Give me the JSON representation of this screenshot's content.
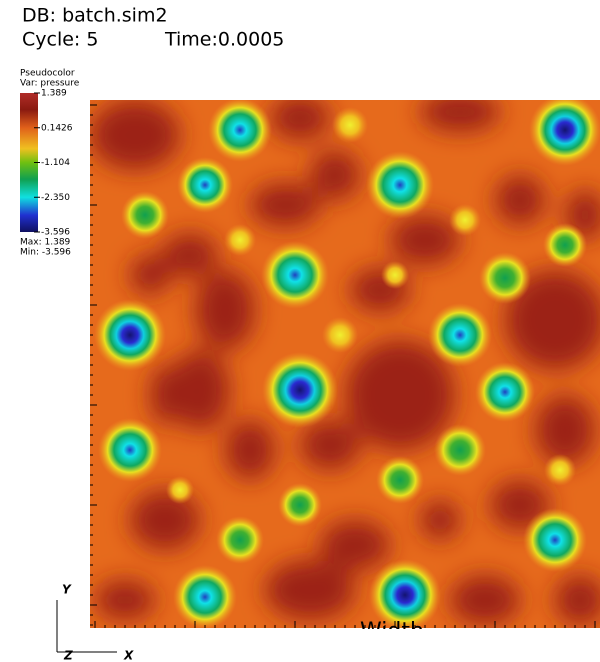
{
  "header": {
    "database": "DB: batch.sim2",
    "cycle": "Cycle: 5",
    "time": "Time:0.0005"
  },
  "legend": {
    "plot": "Pseudocolor",
    "variable": "Var: pressure",
    "ticks": [
      "1.389",
      "0.1426",
      "-1.104",
      "-2.350",
      "-3.596"
    ],
    "max": "Max: 1.389",
    "min": "Min: -3.596"
  },
  "axes": {
    "x_title": "Width",
    "triad": {
      "y": "Y",
      "z": "Z",
      "x": "X"
    }
  }
}
